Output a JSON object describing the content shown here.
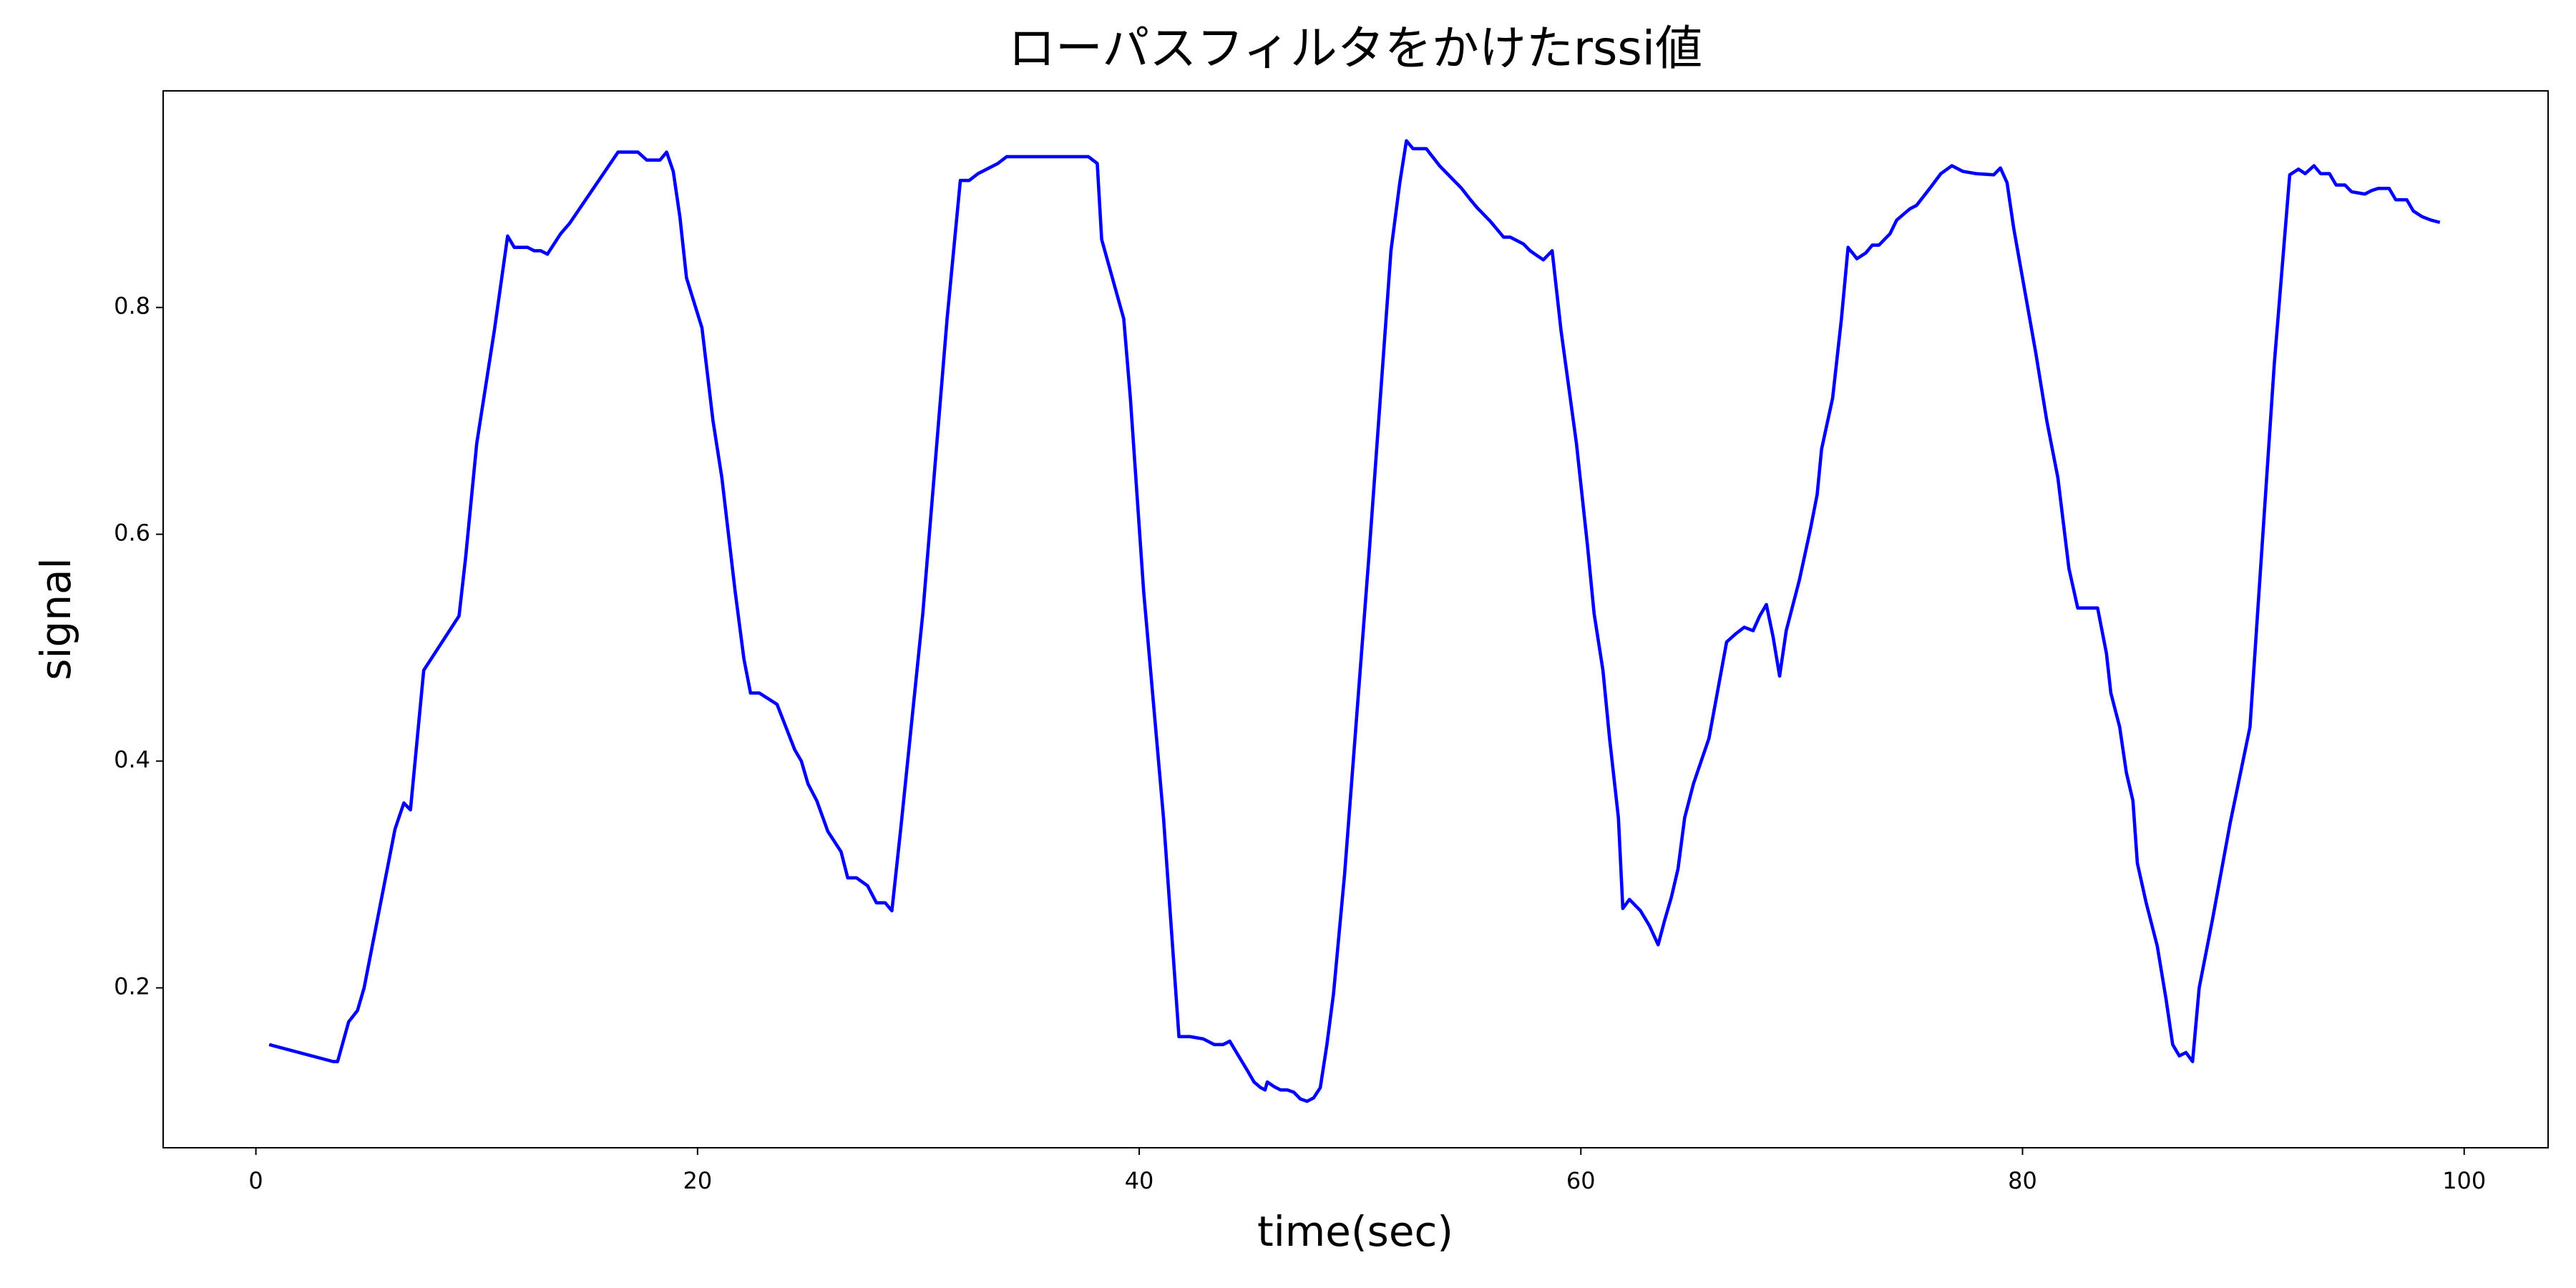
{
  "chart_data": {
    "type": "line",
    "title": "ローパスフィルタをかけたrssi値",
    "x_label": "time(sec)",
    "y_label": "signal",
    "xlim": [
      -4.2,
      103.8
    ],
    "xticks": [
      0,
      20,
      40,
      60,
      80,
      100
    ],
    "ylim": [
      0.059,
      0.991
    ],
    "yticks": [
      0.2,
      0.4,
      0.6,
      0.8
    ],
    "grid": false,
    "x": [
      0.6,
      3.5,
      3.7,
      4.2,
      4.6,
      4.9,
      5.4,
      5.8,
      6.3,
      6.7,
      7.0,
      7.6,
      9.2,
      9.5,
      10.0,
      10.8,
      11.4,
      11.7,
      12.3,
      12.6,
      12.9,
      13.2,
      13.8,
      14.2,
      16.4,
      17.3,
      17.7,
      18.3,
      18.6,
      18.9,
      19.2,
      19.5,
      20.2,
      20.7,
      21.1,
      21.7,
      22.1,
      22.4,
      22.8,
      23.6,
      24.0,
      24.4,
      24.7,
      25.0,
      25.4,
      25.9,
      26.5,
      26.8,
      27.2,
      27.7,
      28.1,
      28.5,
      28.8,
      29.2,
      30.2,
      31.3,
      31.9,
      32.3,
      32.7,
      33.6,
      34.0,
      37.7,
      38.1,
      38.3,
      39.3,
      39.6,
      40.2,
      41.1,
      41.8,
      42.3,
      42.9,
      43.4,
      43.8,
      44.1,
      44.5,
      44.9,
      45.2,
      45.5,
      45.7,
      45.8,
      46.1,
      46.4,
      46.7,
      47.0,
      47.3,
      47.6,
      47.9,
      48.2,
      48.5,
      48.8,
      49.3,
      50.4,
      51.4,
      51.8,
      52.1,
      52.4,
      53.0,
      53.6,
      54.6,
      55.0,
      55.3,
      55.9,
      56.5,
      56.8,
      57.4,
      57.7,
      58.3,
      58.7,
      59.1,
      59.8,
      60.3,
      60.6,
      61.0,
      61.3,
      61.7,
      61.9,
      62.2,
      62.7,
      63.1,
      63.5,
      63.8,
      64.1,
      64.4,
      64.7,
      65.1,
      65.8,
      66.6,
      67.0,
      67.4,
      67.8,
      68.1,
      68.4,
      68.7,
      69.0,
      69.3,
      69.9,
      70.4,
      70.7,
      70.9,
      71.4,
      71.8,
      72.1,
      72.5,
      72.9,
      73.2,
      73.5,
      74.0,
      74.3,
      74.9,
      75.2,
      75.8,
      76.3,
      76.8,
      77.3,
      77.9,
      78.7,
      79.0,
      79.3,
      79.6,
      80.6,
      81.1,
      81.6,
      82.1,
      82.5,
      83.4,
      83.8,
      84.0,
      84.4,
      84.7,
      85.0,
      85.2,
      85.6,
      86.1,
      86.5,
      86.8,
      87.1,
      87.4,
      87.7,
      88.0,
      88.6,
      89.4,
      90.3,
      91.4,
      92.1,
      92.5,
      92.8,
      93.2,
      93.5,
      93.9,
      94.2,
      94.6,
      94.9,
      95.5,
      95.8,
      96.1,
      96.6,
      96.9,
      97.4,
      97.7,
      98.1,
      98.5,
      98.9
    ],
    "series": [
      {
        "color": "#0000ff",
        "values": [
          0.15,
          0.135,
          0.135,
          0.17,
          0.18,
          0.2,
          0.25,
          0.29,
          0.34,
          0.363,
          0.357,
          0.48,
          0.528,
          0.58,
          0.68,
          0.78,
          0.863,
          0.853,
          0.853,
          0.85,
          0.85,
          0.847,
          0.865,
          0.874,
          0.937,
          0.937,
          0.93,
          0.93,
          0.937,
          0.92,
          0.88,
          0.826,
          0.782,
          0.7,
          0.65,
          0.55,
          0.49,
          0.46,
          0.46,
          0.45,
          0.43,
          0.41,
          0.4,
          0.38,
          0.365,
          0.338,
          0.32,
          0.297,
          0.297,
          0.29,
          0.275,
          0.275,
          0.268,
          0.34,
          0.53,
          0.79,
          0.912,
          0.912,
          0.918,
          0.927,
          0.933,
          0.933,
          0.927,
          0.86,
          0.79,
          0.72,
          0.55,
          0.35,
          0.157,
          0.157,
          0.155,
          0.15,
          0.15,
          0.153,
          0.14,
          0.127,
          0.117,
          0.112,
          0.11,
          0.117,
          0.113,
          0.11,
          0.11,
          0.108,
          0.102,
          0.1,
          0.103,
          0.112,
          0.15,
          0.195,
          0.3,
          0.58,
          0.85,
          0.91,
          0.947,
          0.94,
          0.94,
          0.925,
          0.905,
          0.895,
          0.888,
          0.876,
          0.862,
          0.862,
          0.856,
          0.85,
          0.842,
          0.85,
          0.78,
          0.68,
          0.59,
          0.53,
          0.48,
          0.42,
          0.35,
          0.27,
          0.278,
          0.268,
          0.255,
          0.238,
          0.26,
          0.28,
          0.305,
          0.35,
          0.38,
          0.42,
          0.505,
          0.512,
          0.518,
          0.515,
          0.528,
          0.538,
          0.51,
          0.475,
          0.515,
          0.56,
          0.605,
          0.635,
          0.675,
          0.72,
          0.79,
          0.853,
          0.843,
          0.848,
          0.855,
          0.855,
          0.865,
          0.877,
          0.887,
          0.89,
          0.905,
          0.918,
          0.925,
          0.92,
          0.918,
          0.917,
          0.923,
          0.91,
          0.87,
          0.76,
          0.7,
          0.65,
          0.57,
          0.535,
          0.535,
          0.495,
          0.46,
          0.43,
          0.39,
          0.365,
          0.31,
          0.275,
          0.237,
          0.19,
          0.15,
          0.14,
          0.143,
          0.135,
          0.2,
          0.26,
          0.345,
          0.43,
          0.75,
          0.917,
          0.922,
          0.918,
          0.925,
          0.918,
          0.918,
          0.908,
          0.908,
          0.902,
          0.9,
          0.903,
          0.905,
          0.905,
          0.895,
          0.895,
          0.885,
          0.88,
          0.877,
          0.875
        ]
      }
    ]
  }
}
